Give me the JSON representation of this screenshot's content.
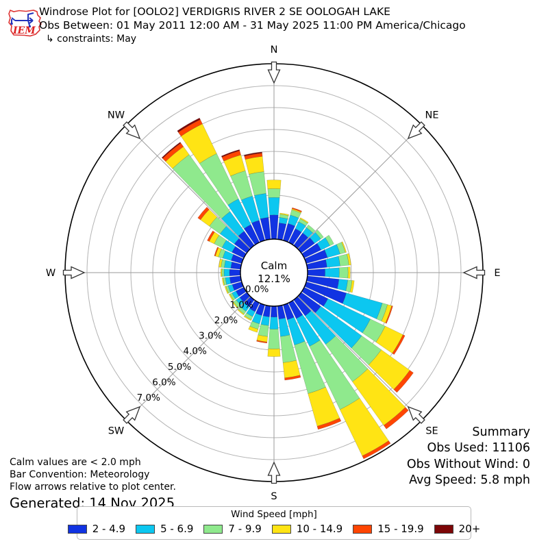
{
  "header": {
    "title": "Windrose Plot for [OOLO2] VERDIGRIS RIVER 2 SE OOLOGAH LAKE",
    "subtitle": "Obs Between: 01 May 2011 12:00 AM - 31 May 2025 11:00 PM America/Chicago",
    "constraints": "↳ constraints: May",
    "logo_text": "IEM"
  },
  "summary": {
    "title": "Summary",
    "obs_used": "Obs Used: 11106",
    "obs_without_wind": "Obs Without Wind: 0",
    "avg_speed": "Avg Speed: 5.8 mph"
  },
  "notes": {
    "calm_note": "Calm values are < 2.0 mph",
    "convention_note": "Bar Convention: Meteorology",
    "arrows_note": "Flow arrows relative to plot center.",
    "generated": "Generated: 14 Nov 2025"
  },
  "legend": {
    "title": "Wind Speed [mph]"
  },
  "chart_data": {
    "type": "bar",
    "subtype": "windrose-stacked-polar-bar",
    "title": "Windrose Plot for [OOLO2] VERDIGRIS RIVER 2 SE OOLOGAH LAKE",
    "calm": {
      "label": "Calm",
      "pct": 12.1,
      "pct_label": "12.1%"
    },
    "compass_labels": [
      "N",
      "NE",
      "E",
      "SE",
      "S",
      "SW",
      "W",
      "NW"
    ],
    "compass_angles_deg": [
      0,
      45,
      90,
      135,
      180,
      225,
      270,
      315
    ],
    "ring_labels": [
      "0.0%",
      "1.0%",
      "2.0%",
      "3.0%",
      "4.0%",
      "5.0%",
      "6.0%",
      "7.0%"
    ],
    "ring_step_pct": 1.0,
    "ring_max_pct": 8.0,
    "grid": true,
    "legend_position": "bottom",
    "directions_deg": [
      0,
      10,
      20,
      30,
      40,
      50,
      60,
      70,
      80,
      90,
      100,
      110,
      120,
      130,
      140,
      150,
      160,
      170,
      180,
      190,
      200,
      210,
      220,
      230,
      240,
      250,
      260,
      270,
      280,
      290,
      300,
      310,
      320,
      330,
      340,
      350
    ],
    "units": "percent frequency",
    "series": [
      {
        "name": "2 - 4.9",
        "color": "#1133e2",
        "values": [
          1.1,
          0.75,
          0.8,
          0.7,
          0.7,
          0.75,
          0.85,
          1.0,
          0.9,
          0.8,
          1.45,
          1.9,
          1.2,
          1.1,
          0.9,
          0.8,
          0.7,
          0.6,
          0.5,
          0.5,
          0.5,
          0.45,
          0.4,
          0.4,
          0.4,
          0.45,
          0.5,
          0.5,
          0.45,
          0.5,
          0.6,
          0.7,
          0.8,
          0.9,
          0.95,
          1.0
        ]
      },
      {
        "name": "5 - 6.9",
        "color": "#0cc7f0",
        "values": [
          0.8,
          0.25,
          0.4,
          0.35,
          0.3,
          0.35,
          0.45,
          0.6,
          0.6,
          0.65,
          0.4,
          1.7,
          2.15,
          2.3,
          1.6,
          1.4,
          1.2,
          0.8,
          0.55,
          0.4,
          0.4,
          0.25,
          0.25,
          0.2,
          0.2,
          0.2,
          0.2,
          0.25,
          0.3,
          0.4,
          0.5,
          0.8,
          1.1,
          1.3,
          1.15,
          1.1
        ]
      },
      {
        "name": "7 - 9.9",
        "color": "#8fe98d",
        "values": [
          0.4,
          0.15,
          0.25,
          0.15,
          0.15,
          0.15,
          0.2,
          0.25,
          0.4,
          0.4,
          0.2,
          0.25,
          0.75,
          1.1,
          2.1,
          3.2,
          2.3,
          1.2,
          0.9,
          0.5,
          0.25,
          0.15,
          0.15,
          0.15,
          0.1,
          0.1,
          0.1,
          0.1,
          0.15,
          0.2,
          0.4,
          0.6,
          3.2,
          2.3,
          1.2,
          1.0
        ]
      },
      {
        "name": "10 - 14.9",
        "color": "#ffe414",
        "values": [
          0.4,
          0.05,
          0.05,
          0.05,
          0.0,
          0.0,
          0.0,
          0.05,
          0.1,
          0.1,
          0.1,
          0.2,
          0.9,
          1.6,
          2.45,
          2.35,
          1.55,
          0.7,
          0.35,
          0.25,
          0.15,
          0.05,
          0.05,
          0.05,
          0.05,
          0.05,
          0.05,
          0.05,
          0.1,
          0.15,
          0.25,
          0.5,
          0.45,
          1.5,
          0.75,
          0.7
        ]
      },
      {
        "name": "15 - 19.9",
        "color": "#ff4502",
        "values": [
          0.0,
          0.0,
          0.05,
          0.0,
          0.0,
          0.0,
          0.0,
          0.0,
          0.0,
          0.0,
          0.0,
          0.05,
          0.1,
          0.2,
          0.2,
          0.15,
          0.15,
          0.1,
          0.0,
          0.05,
          0.0,
          0.0,
          0.0,
          0.0,
          0.0,
          0.0,
          0.0,
          0.0,
          0.0,
          0.05,
          0.1,
          0.15,
          0.2,
          0.22,
          0.2,
          0.15
        ]
      },
      {
        "name": "20+",
        "color": "#7c0607",
        "values": [
          0.0,
          0.0,
          0.0,
          0.0,
          0.0,
          0.0,
          0.0,
          0.0,
          0.0,
          0.0,
          0.0,
          0.0,
          0.0,
          0.0,
          0.0,
          0.0,
          0.0,
          0.0,
          0.0,
          0.0,
          0.0,
          0.0,
          0.0,
          0.0,
          0.0,
          0.0,
          0.0,
          0.0,
          0.0,
          0.0,
          0.0,
          0.0,
          0.05,
          0.08,
          0.05,
          0.05
        ]
      }
    ],
    "colors": {
      "grid_ring": "#b3b3b3",
      "spoke": "#9a9a9a",
      "outer_ring": "#000000",
      "calm_fill": "#ffffff",
      "calm_edge": "#000000",
      "arrow_stroke": "#333333",
      "arrow_fill": "#ffffff"
    }
  }
}
